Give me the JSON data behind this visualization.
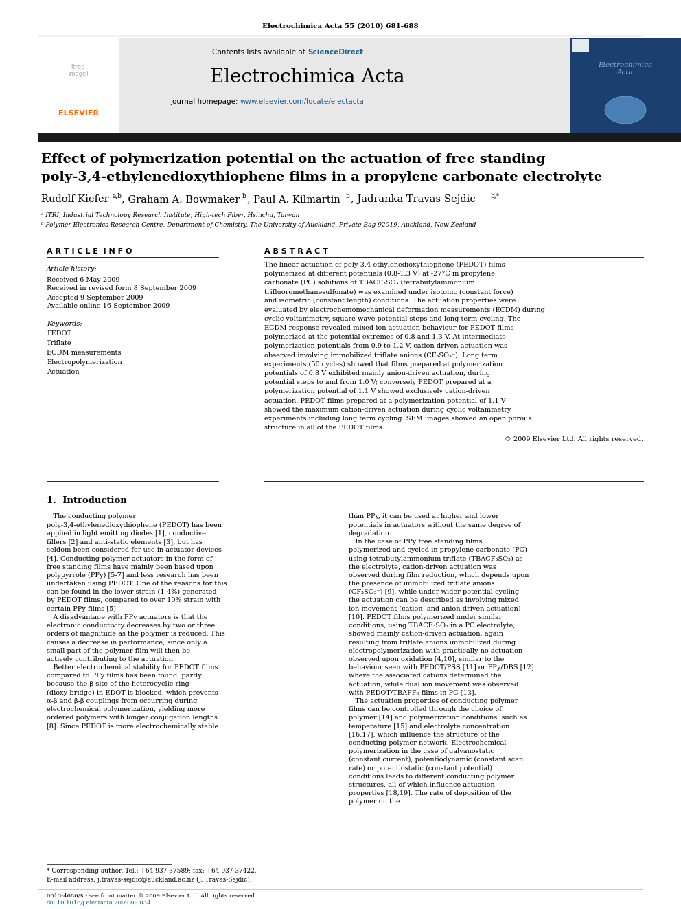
{
  "journal_ref": "Electrochimica Acta 55 (2010) 681-688",
  "journal_name": "Electrochimica Acta",
  "sciencedirect_color": "#1a6496",
  "homepage_color": "#1a6496",
  "title_line1": "Effect of polymerization potential on the actuation of free standing",
  "title_line2": "poly-3,4-ethylenedioxythiophene films in a propylene carbonate electrolyte",
  "affil1": "ᵃ ITRI, Industrial Technology Research Institute, High-tech Fiber, Hsinchu, Taiwan",
  "affil2": "ᵇ Polymer Electronics Research Centre, Department of Chemistry, The University of Auckland, Private Bag 92019, Auckland, New Zealand",
  "article_info_title": "A R T I C L E  I N F O",
  "abstract_title": "A B S T R A C T",
  "article_history_label": "Article history:",
  "received": "Received 6 May 2009",
  "received_revised": "Received in revised form 8 September 2009",
  "accepted": "Accepted 9 September 2009",
  "available": "Available online 16 September 2009",
  "keywords_label": "Keywords:",
  "keywords": [
    "PEDOT",
    "Triflate",
    "ECDM measurements",
    "Electropolymerization",
    "Actuation"
  ],
  "abstract_text": "The linear actuation of poly-3,4-ethylenedioxythiophene (PEDOT) films polymerized at different potentials (0.8-1.3 V) at -27°C in propylene carbonate (PC) solutions of TBACF₃SO₃ (tetrabutylammonium trifluoromethanesulfonate) was examined under isotonic (constant force) and isometric (constant length) conditions. The actuation properties were evaluated by electrochemomechanical deformation measurements (ECDM) during cyclic voltammetry, square wave potential steps and long term cycling. The ECDM response revealed mixed ion actuation behaviour for PEDOT films polymerized at the potential extremes of 0.8 and 1.3 V. At intermediate polymerization potentials from 0.9 to 1.2 V, cation-driven actuation was observed involving immobilized triflate anions (CF₃SO₃⁻). Long term experiments (50 cycles) showed that films prepared at polymerization potentials of 0.8 V exhibited mainly anion-driven actuation, during potential steps to and from 1.0 V; conversely PEDOT prepared at a polymerization potential of 1.1 V showed exclusively cation-driven actuation. PEDOT films prepared at a polymerization potential of 1.1 V showed the maximum cation-driven actuation during cyclic voltammetry experiments including long term cycling. SEM images showed an open porous structure in all of the PEDOT films.",
  "copyright": "© 2009 Elsevier Ltd. All rights reserved.",
  "section1_title": "1.  Introduction",
  "intro_col1": "   The conducting polymer poly-3,4-ethylenedioxythiophene (PEDOT) has been applied in light emitting diodes [1], conductive fillers [2] and anti-static elements [3], but has seldom been considered for use in actuator devices [4]. Conducting polymer actuators in the form of free standing films have mainly been based upon polypyrrole (PPy) [5-7] and less research has been undertaken using PEDOT. One of the reasons for this can be found in the lower strain (1-4%) generated by PEDOT films, compared to over 10% strain with certain PPy films [5].\n   A disadvantage with PPy actuators is that the electronic conductivity decreases by two or three orders of magnitude as the polymer is reduced. This causes a decrease in performance; since only a small part of the polymer film will then be actively contributing to the actuation.\n   Better electrochemical stability for PEDOT films compared to PPy films has been found, partly because the β-site of the heterocyclic ring (dioxy-bridge) in EDOT is blocked, which prevents α-β and β-β couplings from occurring during electrochemical polymerization, yielding more ordered polymers with longer conjugation lengths [8]. Since PEDOT is more electrochemically stable",
  "intro_col2": "than PPy, it can be used at higher and lower potentials in actuators without the same degree of degradation.\n   In the case of PPy free standing films polymerized and cycled in propylene carbonate (PC) using tetrabutylammonium triflate (TBACF₃SO₃) as the electrolyte, cation-driven actuation was observed during film reduction, which depends upon the presence of immobilized triflate anions (CF₃SO₃⁻) [9], while under wider potential cycling the actuation can be described as involving mixed ion movement (cation- and anion-driven actuation) [10]. PEDOT films polymerized under similar conditions, using TBACF₃SO₃ in a PC electrolyte, showed mainly cation-driven actuation, again resulting from triflate anions immobilized during electropolymerization with practically no actuation observed upon oxidation [4,10], similar to the behaviour seen with PEDOT/PSS [11] or PPy/DBS [12] where the associated cations determined the actuation, while dual ion movement was observed with PEDOT/TBAPF₆ films in PC [13].\n   The actuation properties of conducting polymer films can be controlled through the choice of polymer [14] and polymerization conditions, such as temperature [15] and electrolyte concentration [16,17], which influence the structure of the conducting polymer network. Electrochemical polymerization in the case of galvanostatic (constant current), potentiodynamic (constant scan rate) or potentiostatic (constant potential) conditions leads to different conducting polymer structures, all of which influence actuation properties [18,19]. The rate of deposition of the polymer on the",
  "footnote_star": "* Corresponding author. Tel.: +64 937 37589; fax: +64 937 37422.",
  "footnote_email": "E-mail address: j.travas-sejdic@auckland.ac.nz (J. Travas-Sejdic).",
  "issn_line": "0013-4686/$ - see front matter © 2009 Elsevier Ltd. All rights reserved.",
  "doi_line": "doi:10.1016/j.electacta.2009.09.034",
  "header_bg": "#e8e8e8",
  "dark_bar_color": "#1a1a1a",
  "elsevier_orange": "#ff6600"
}
